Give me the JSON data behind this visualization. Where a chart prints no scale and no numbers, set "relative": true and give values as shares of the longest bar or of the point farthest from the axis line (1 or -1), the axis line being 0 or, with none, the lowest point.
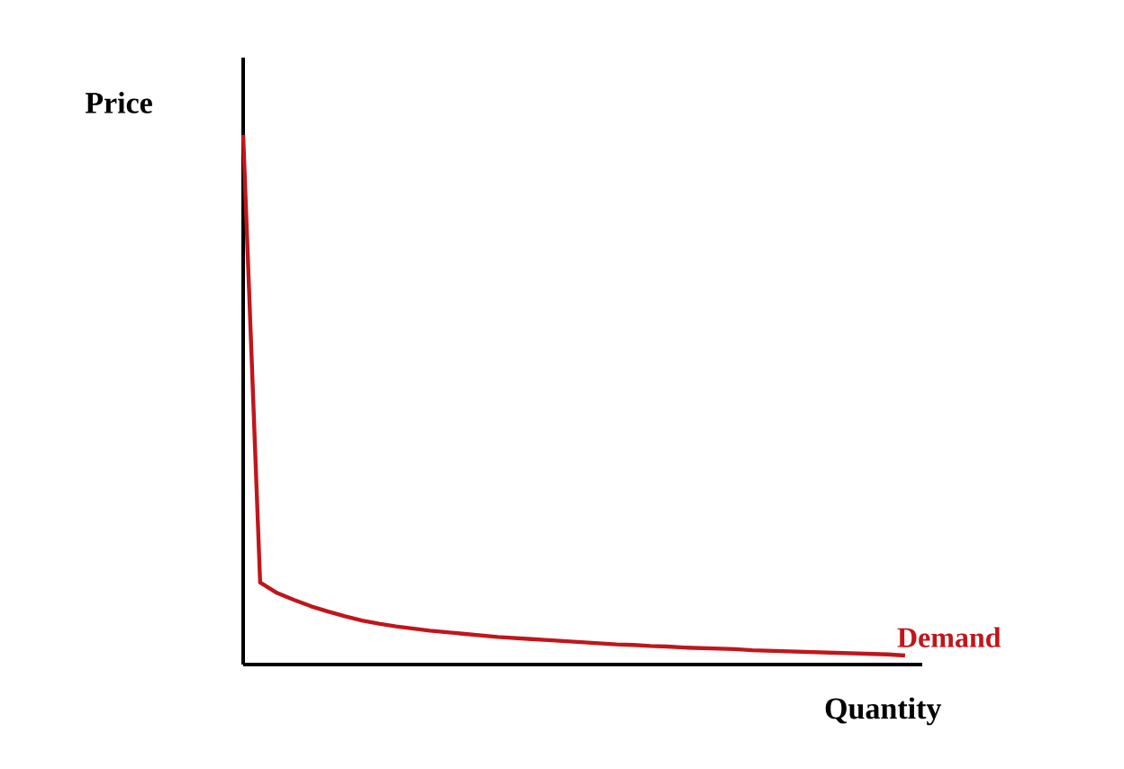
{
  "chart_data": {
    "type": "line",
    "relative": true,
    "xlabel": "Quantity",
    "ylabel": "Price",
    "categories": [
      null,
      null,
      null,
      null,
      null,
      null,
      null,
      null,
      null,
      null,
      null,
      null,
      null,
      null,
      null,
      null,
      null,
      null,
      null,
      null,
      null,
      null,
      null,
      null,
      null,
      null,
      null,
      null,
      null,
      null,
      null,
      null,
      null,
      null,
      null,
      null,
      null,
      null,
      null,
      null
    ],
    "series": [
      {
        "name": "Demand",
        "color": "#c0161b",
        "values": [
          1,
          0.155,
          0.135,
          0.122,
          0.11,
          0.1,
          0.091,
          0.083,
          0.077,
          0.072,
          0.068,
          0.064,
          0.061,
          0.058,
          0.055,
          0.052,
          0.05,
          0.048,
          0.046,
          0.044,
          0.042,
          0.04,
          0.038,
          0.037,
          0.035,
          0.034,
          0.032,
          0.031,
          0.03,
          0.029,
          0.027,
          0.026,
          0.025,
          0.024,
          0.023,
          0.022,
          0.021,
          0.02,
          0.019,
          0.017
        ]
      }
    ]
  }
}
